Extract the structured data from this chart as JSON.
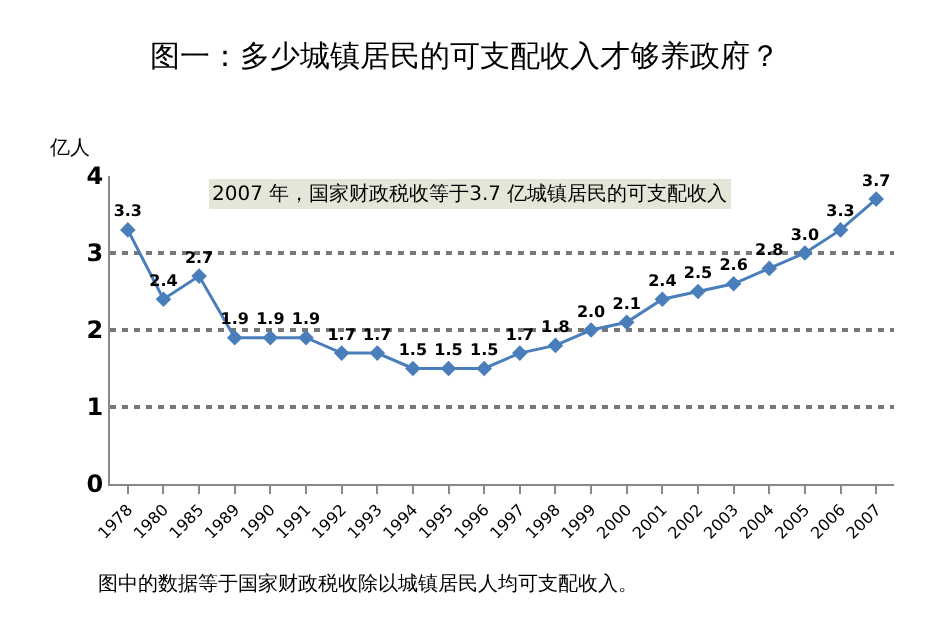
{
  "chart_data": {
    "type": "line",
    "title": "图一：多少城镇居民的可支配收入才够养政府？",
    "ylabel": "亿人",
    "categories": [
      "1978",
      "1980",
      "1985",
      "1989",
      "1990",
      "1991",
      "1992",
      "1993",
      "1994",
      "1995",
      "1996",
      "1997",
      "1998",
      "1999",
      "2000",
      "2001",
      "2002",
      "2003",
      "2004",
      "2005",
      "2006",
      "2007"
    ],
    "series": [
      {
        "color": "#4a7ebb",
        "values": [
          3.3,
          2.4,
          2.7,
          1.9,
          1.9,
          1.9,
          1.7,
          1.7,
          1.5,
          1.5,
          1.5,
          1.7,
          1.8,
          2.0,
          2.1,
          2.4,
          2.5,
          2.6,
          2.8,
          3.0,
          3.3,
          3.7
        ]
      }
    ],
    "value_labels": [
      "3.3",
      "2.4",
      "2.7",
      "1.9",
      "1.9",
      "1.9",
      "1.7",
      "1.7",
      "1.5",
      "1.5",
      "1.5",
      "1.7",
      "1.8",
      "2.0",
      "2.1",
      "2.4",
      "2.5",
      "2.6",
      "2.8",
      "3.0",
      "3.3",
      "3.7"
    ],
    "ylim": [
      0,
      4
    ],
    "yticks": [
      0,
      1,
      2,
      3,
      4
    ],
    "grid": "y",
    "marker": "diamond",
    "line_style": "solid",
    "annotations": [
      "2007 年，国家财政税收等于3.7 亿城镇居民的可支配收入",
      "图中的数据等于国家财政税收除以城镇居民人均可支配收入。"
    ]
  }
}
